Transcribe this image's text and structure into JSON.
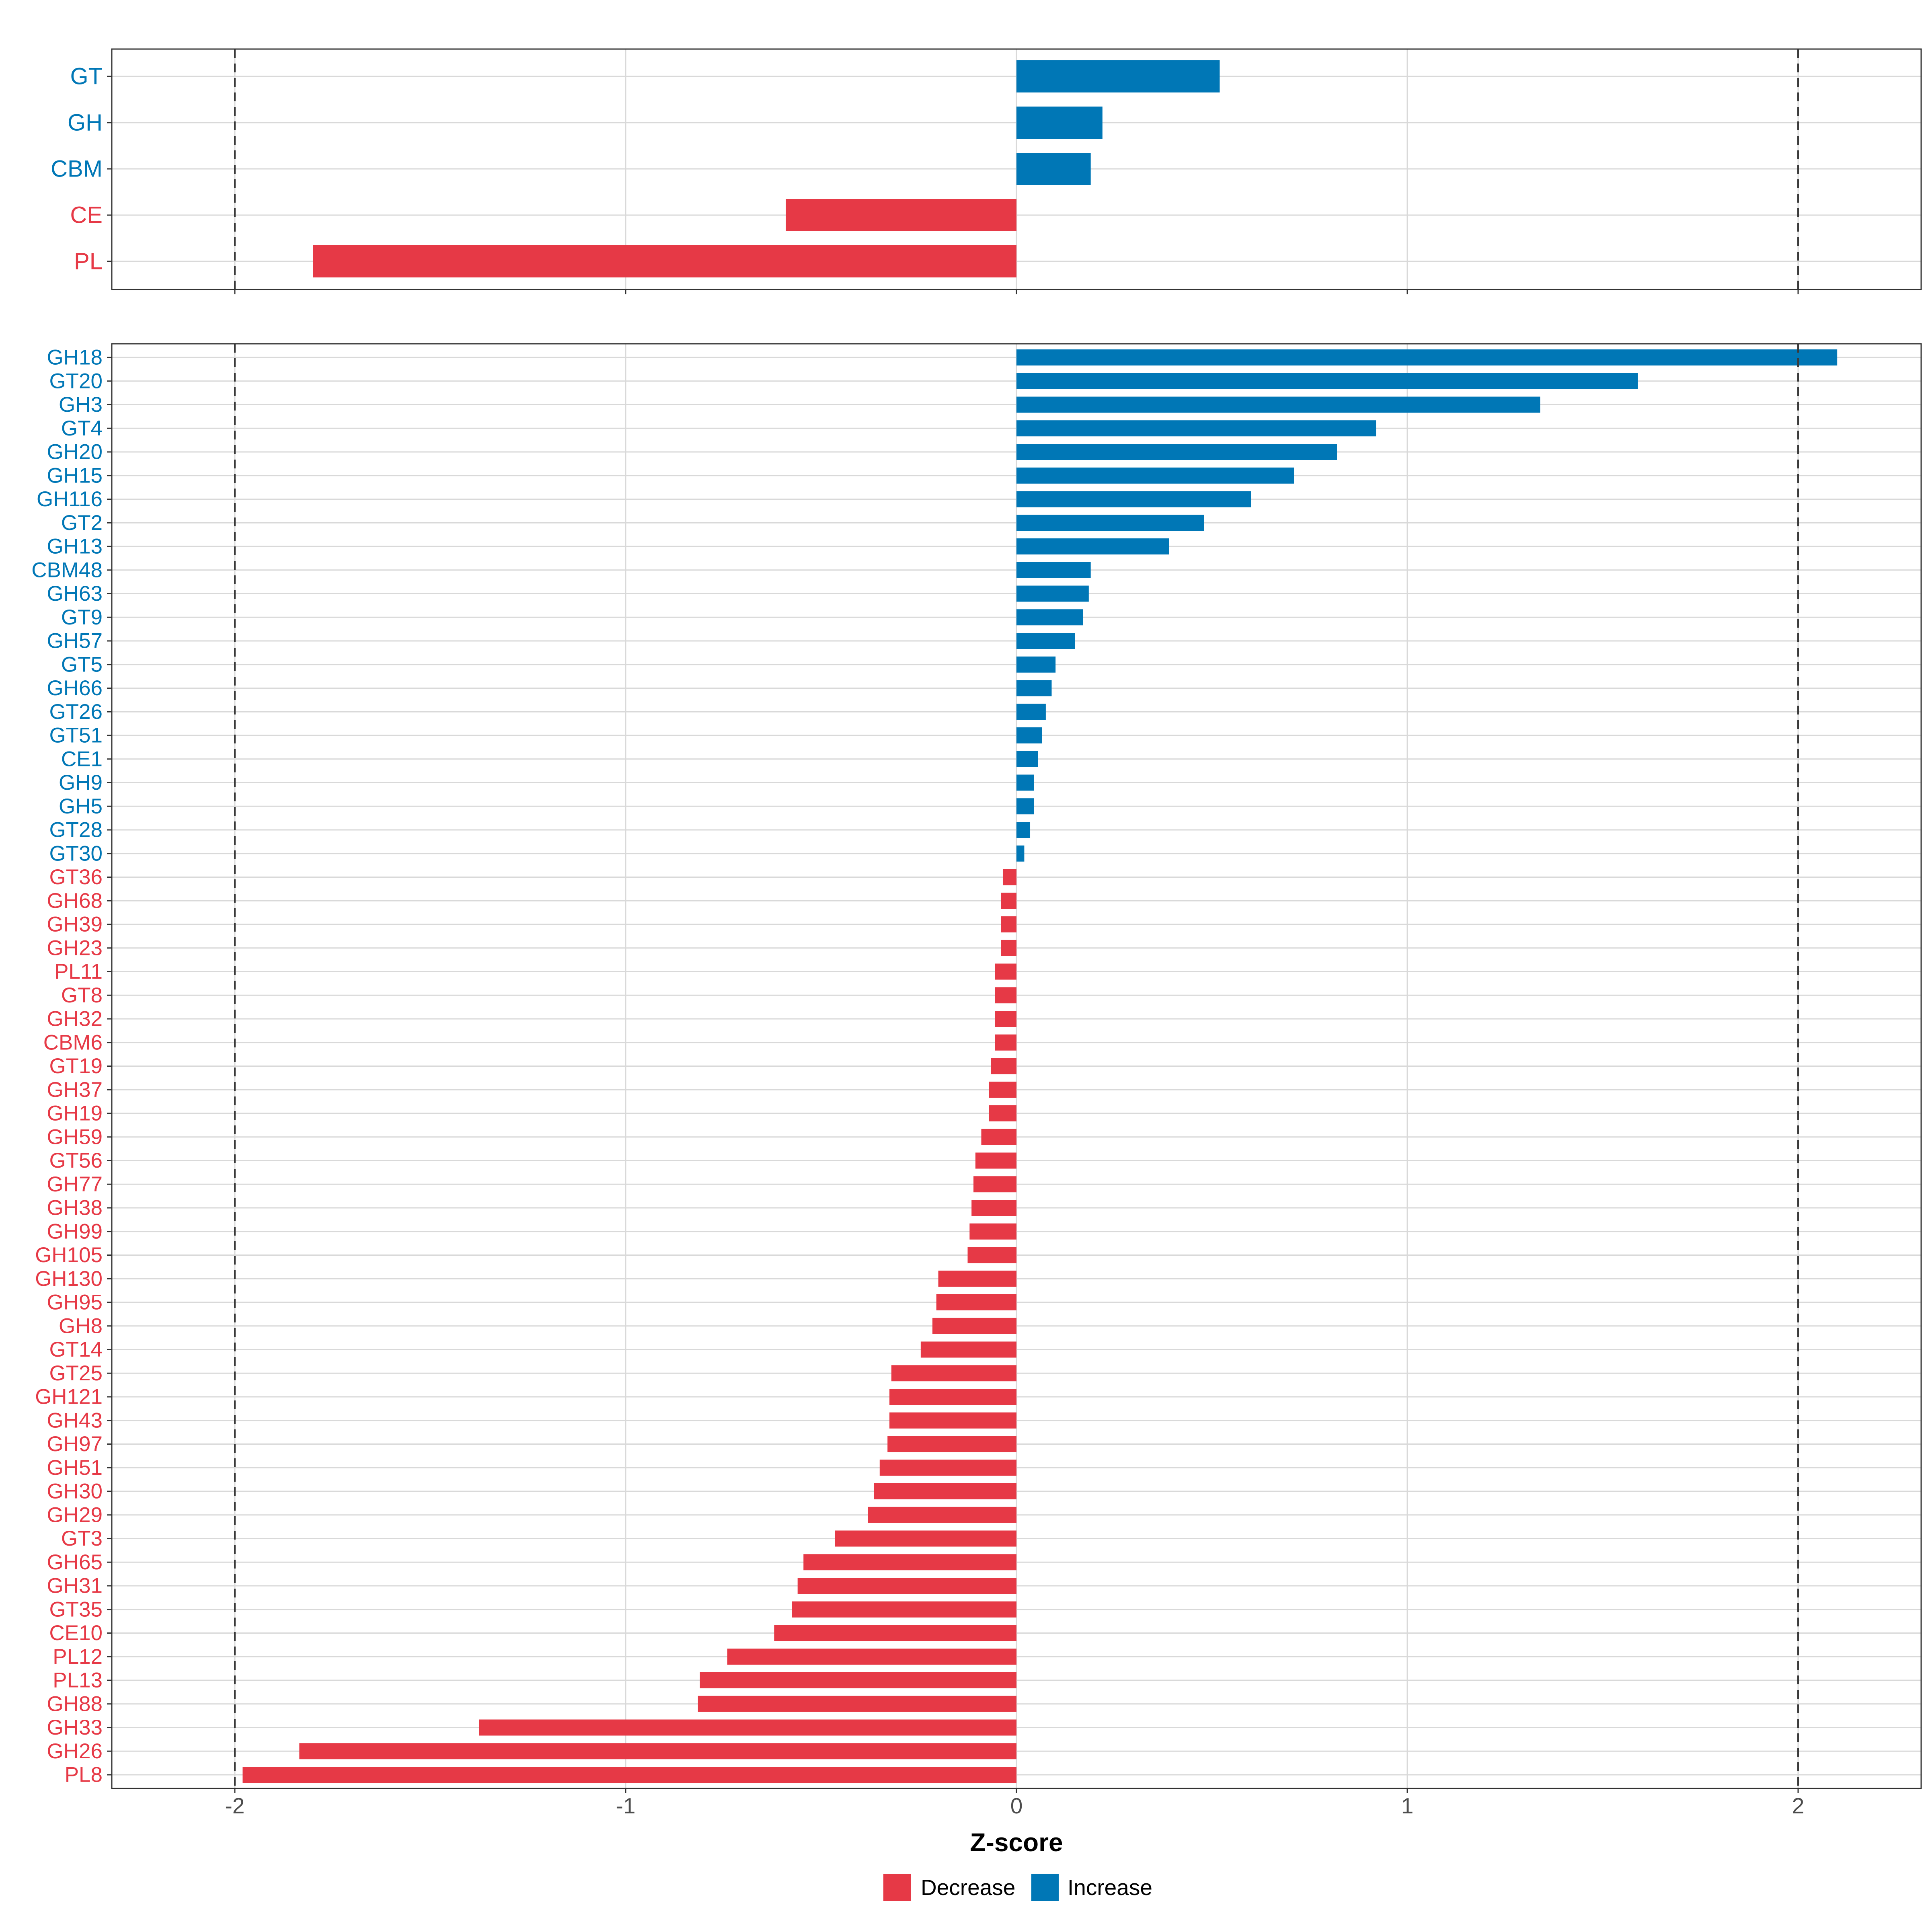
{
  "chart_data": [
    {
      "type": "bar",
      "orientation": "horizontal",
      "panel": "top",
      "categories": [
        "GT",
        "GH",
        "CBM",
        "CE",
        "PL"
      ],
      "values": [
        0.52,
        0.22,
        0.19,
        -0.59,
        -1.8
      ],
      "reference_lines": [
        -2,
        2
      ],
      "xlim": [
        -2.3,
        2.3
      ]
    },
    {
      "type": "bar",
      "orientation": "horizontal",
      "panel": "bottom",
      "categories": [
        "GH18",
        "GT20",
        "GH3",
        "GT4",
        "GH20",
        "GH15",
        "GH116",
        "GT2",
        "GH13",
        "CBM48",
        "GH63",
        "GT9",
        "GH57",
        "GT5",
        "GH66",
        "GT26",
        "GT51",
        "CE1",
        "GH9",
        "GH5",
        "GT28",
        "GT30",
        "GT36",
        "GH68",
        "GH39",
        "GH23",
        "PL11",
        "GT8",
        "GH32",
        "CBM6",
        "GT19",
        "GH37",
        "GH19",
        "GH59",
        "GT56",
        "GH77",
        "GH38",
        "GH99",
        "GH105",
        "GH130",
        "GH95",
        "GH8",
        "GT14",
        "GT25",
        "GH121",
        "GH43",
        "GH97",
        "GH51",
        "GH30",
        "GH29",
        "GT3",
        "GH65",
        "GH31",
        "GT35",
        "CE10",
        "PL12",
        "PL13",
        "GH88",
        "GH33",
        "GH26",
        "PL8"
      ],
      "values": [
        2.1,
        1.59,
        1.34,
        0.92,
        0.82,
        0.71,
        0.6,
        0.48,
        0.39,
        0.19,
        0.185,
        0.17,
        0.15,
        0.1,
        0.09,
        0.075,
        0.065,
        0.055,
        0.045,
        0.045,
        0.035,
        0.02,
        -0.035,
        -0.04,
        -0.04,
        -0.04,
        -0.055,
        -0.055,
        -0.055,
        -0.055,
        -0.065,
        -0.07,
        -0.07,
        -0.09,
        -0.105,
        -0.11,
        -0.115,
        -0.12,
        -0.125,
        -0.2,
        -0.205,
        -0.215,
        -0.245,
        -0.32,
        -0.325,
        -0.325,
        -0.33,
        -0.35,
        -0.365,
        -0.38,
        -0.465,
        -0.545,
        -0.56,
        -0.575,
        -0.62,
        -0.74,
        -0.81,
        -0.815,
        -1.375,
        -1.835,
        -1.98
      ],
      "reference_lines": [
        -2,
        2
      ],
      "xlim": [
        -2.3,
        2.3
      ],
      "xticks": [
        -2,
        -1,
        0,
        1,
        2
      ],
      "xtick_labels": [
        "-2",
        "-1",
        "0",
        "1",
        "2"
      ],
      "xlabel": "Z-score"
    }
  ],
  "legend": {
    "items": [
      {
        "label": "Decrease",
        "color": "#e63946"
      },
      {
        "label": "Increase",
        "color": "#0077b6"
      }
    ]
  },
  "colors": {
    "decrease": "#e63946",
    "increase": "#0077b6",
    "grid": "#d9d9d9",
    "axis_text": "#4d4d4d"
  }
}
